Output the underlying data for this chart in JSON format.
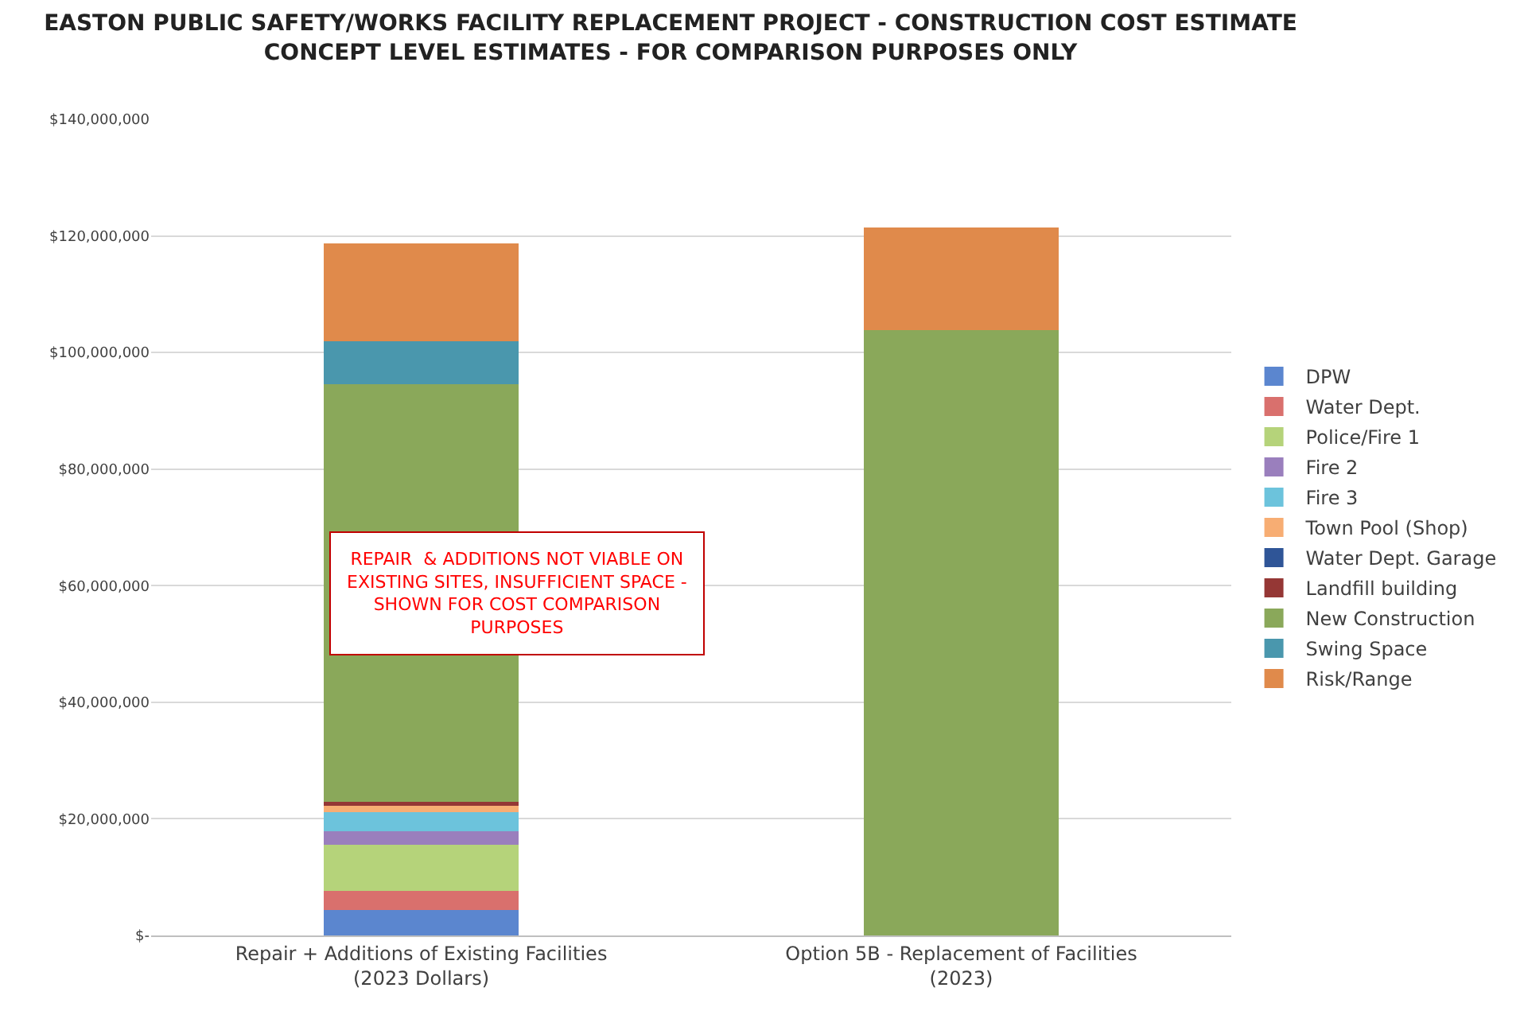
{
  "chart_data": {
    "type": "bar",
    "stacked": true,
    "title": "EASTON PUBLIC SAFETY/WORKS FACILITY REPLACEMENT PROJECT - CONSTRUCTION COST ESTIMATE\nCONCEPT LEVEL ESTIMATES - FOR COMPARISON PURPOSES ONLY",
    "categories": [
      "Repair + Additions of Existing Facilities\n(2023 Dollars)",
      "Option 5B - Replacement of Facilities\n(2023)"
    ],
    "series": [
      {
        "name": "DPW",
        "color": "#5b86cf",
        "values": [
          4400000,
          null
        ]
      },
      {
        "name": "Water Dept.",
        "color": "#d9706d",
        "values": [
          3300000,
          null
        ]
      },
      {
        "name": "Police/Fire 1",
        "color": "#b5d37a",
        "values": [
          7900000,
          null
        ]
      },
      {
        "name": "Fire 2",
        "color": "#9a7fbd",
        "values": [
          2300000,
          null
        ]
      },
      {
        "name": "Fire 3",
        "color": "#6cc3dc",
        "values": [
          3200000,
          null
        ]
      },
      {
        "name": "Town Pool (Shop)",
        "color": "#f7ad73",
        "values": [
          1200000,
          null
        ]
      },
      {
        "name": "Water Dept. Garage",
        "color": "#2f5597",
        "values": [
          null,
          null
        ]
      },
      {
        "name": "Landfill building",
        "color": "#953735",
        "values": [
          600000,
          null
        ]
      },
      {
        "name": "New Construction",
        "color": "#8aa85a",
        "values": [
          71600000,
          103800000
        ]
      },
      {
        "name": "Swing Space",
        "color": "#4a97ad",
        "values": [
          7400000,
          null
        ]
      },
      {
        "name": "Risk/Range",
        "color": "#e08a4b",
        "values": [
          16800000,
          17700000
        ]
      }
    ],
    "ylim": [
      0,
      140000000
    ],
    "yticks": [
      {
        "value": 0,
        "label": "$-"
      },
      {
        "value": 20000000,
        "label": "$20,000,000"
      },
      {
        "value": 40000000,
        "label": "$40,000,000"
      },
      {
        "value": 60000000,
        "label": "$60,000,000"
      },
      {
        "value": 80000000,
        "label": "$80,000,000"
      },
      {
        "value": 100000000,
        "label": "$100,000,000"
      },
      {
        "value": 120000000,
        "label": "$120,000,000"
      },
      {
        "value": 140000000,
        "label": "$140,000,000"
      }
    ],
    "grid": "y",
    "legend": "right",
    "annotations": [
      "REPAIR  & ADDITIONS NOT VIABLE ON\nEXISTING SITES, INSUFFICIENT SPACE -\nSHOWN FOR COST COMPARISON\nPURPOSES"
    ]
  }
}
